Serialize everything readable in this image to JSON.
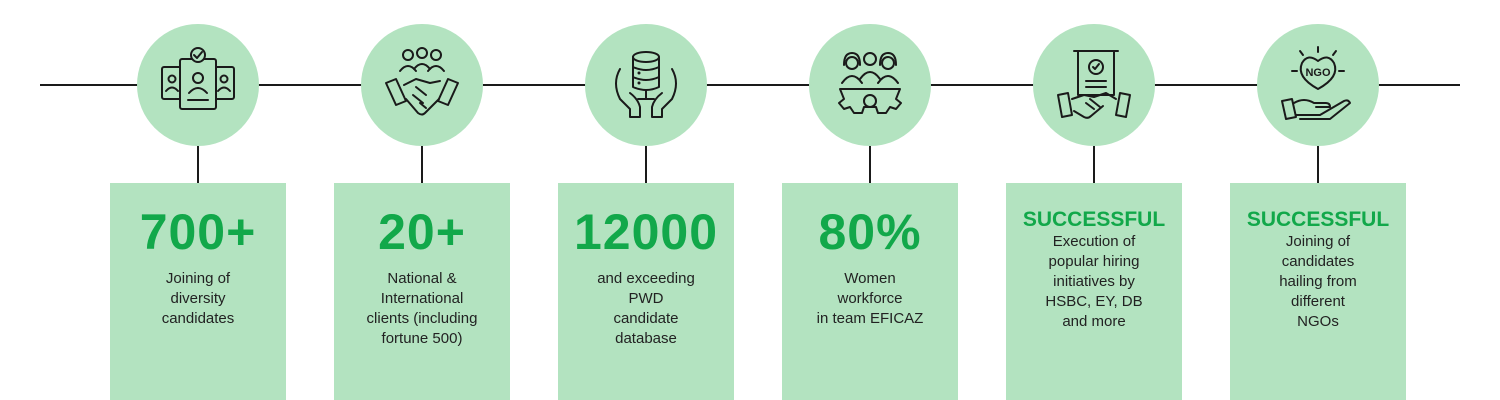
{
  "colors": {
    "accent": "#12a84a",
    "card_bg": "#b3e3c0",
    "line": "#1a1a1a"
  },
  "items": [
    {
      "icon": "id-cards-icon",
      "headline": "700+",
      "description": "Joining of\ndiversity\ncandidates"
    },
    {
      "icon": "handshake-team-icon",
      "headline": "20+",
      "description": "National &\nInternational\nclients (including\nfortune 500)"
    },
    {
      "icon": "database-hands-icon",
      "headline": "12000",
      "description": "and exceeding\nPWD\ncandidate\ndatabase"
    },
    {
      "icon": "women-team-gear-icon",
      "headline": "80%",
      "description": "Women\nworkforce\nin team EFICAZ"
    },
    {
      "icon": "certificate-handshake-icon",
      "headline": "SUCCESSFUL",
      "description": "Execution of\npopular hiring\ninitiatives by\nHSBC, EY, DB\nand more"
    },
    {
      "icon": "ngo-heart-hand-icon",
      "headline": "SUCCESSFUL",
      "description": "Joining of\ncandidates\nhailing from\ndifferent\nNGOs"
    }
  ]
}
